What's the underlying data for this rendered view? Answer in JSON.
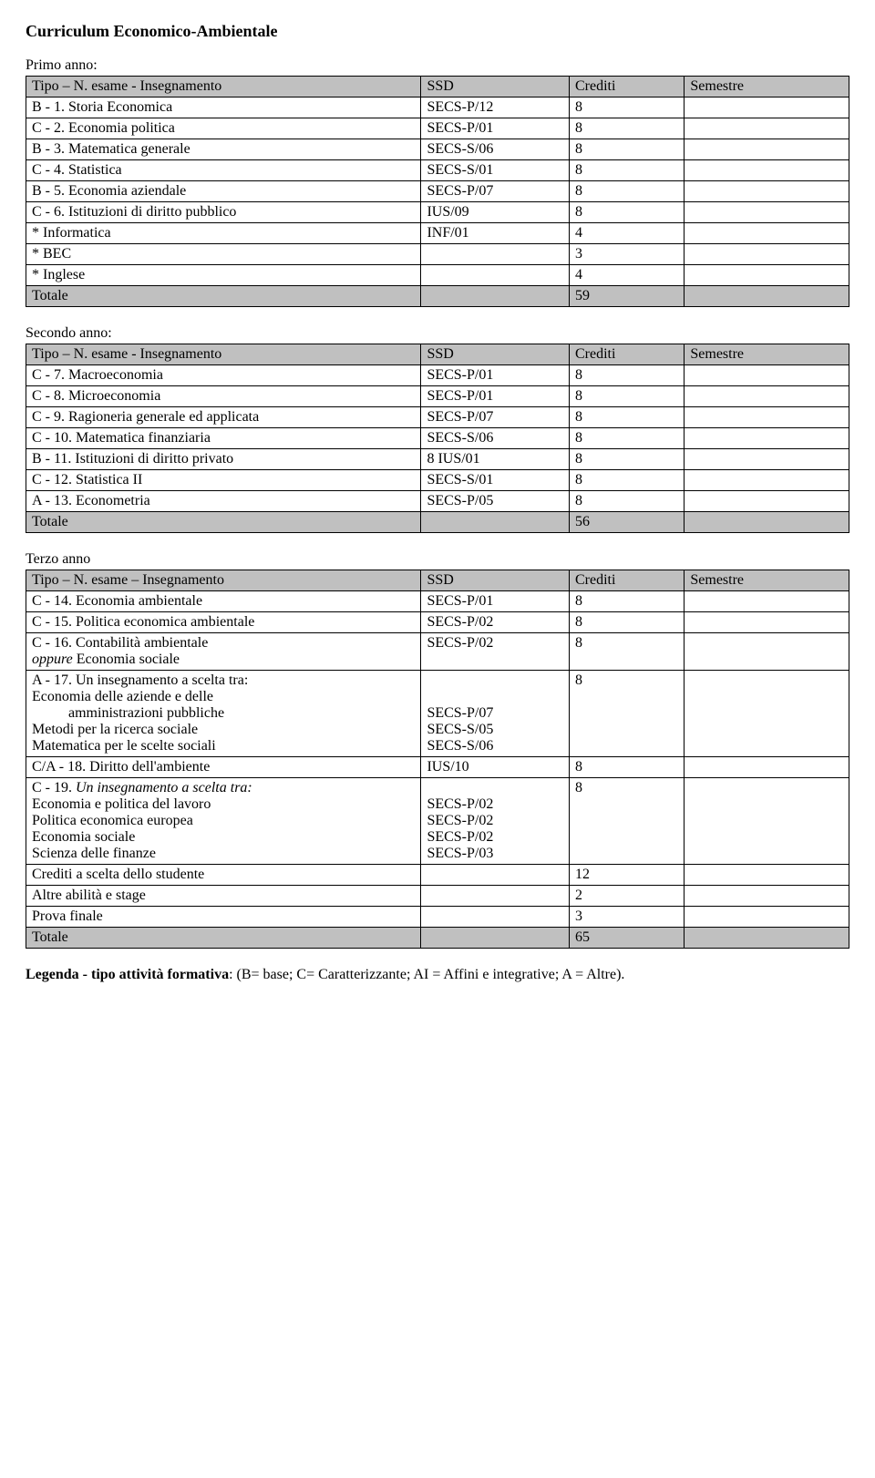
{
  "title": "Curriculum Economico-Ambientale",
  "headers": {
    "name1": "Tipo – N. esame - Insegnamento",
    "name2": "Tipo – N. esame – Insegnamento",
    "ssd": "SSD",
    "crediti": "Crediti",
    "semestre": "Semestre",
    "totale": "Totale"
  },
  "primo": {
    "label": "Primo anno:",
    "rows": [
      {
        "n": "B - 1. Storia Economica",
        "s": "SECS-P/12",
        "c": "8"
      },
      {
        "n": "C - 2. Economia politica",
        "s": "SECS-P/01",
        "c": "8"
      },
      {
        "n": "B - 3. Matematica generale",
        "s": "SECS-S/06",
        "c": "8"
      },
      {
        "n": "C - 4. Statistica",
        "s": "SECS-S/01",
        "c": "8"
      },
      {
        "n": "B - 5. Economia aziendale",
        "s": "SECS-P/07",
        "c": "8"
      },
      {
        "n": "C - 6. Istituzioni di diritto pubblico",
        "s": "IUS/09",
        "c": "8"
      },
      {
        "n": "* Informatica",
        "s": "INF/01",
        "c": "4"
      },
      {
        "n": "* BEC",
        "s": "",
        "c": "3"
      },
      {
        "n": "* Inglese",
        "s": "",
        "c": "4"
      }
    ],
    "total": "59"
  },
  "secondo": {
    "label": "Secondo anno:",
    "rows": [
      {
        "n": "C - 7. Macroeconomia",
        "s": "SECS-P/01",
        "c": "8"
      },
      {
        "n": "C - 8. Microeconomia",
        "s": "SECS-P/01",
        "c": "8"
      },
      {
        "n": "C - 9. Ragioneria generale ed applicata",
        "s": "SECS-P/07",
        "c": "8"
      },
      {
        "n": "C - 10. Matematica finanziaria",
        "s": "SECS-S/06",
        "c": "8"
      },
      {
        "n": "B - 11. Istituzioni di diritto privato",
        "s": "8 IUS/01",
        "c": "8"
      },
      {
        "n": "C - 12. Statistica II",
        "s": "SECS-S/01",
        "c": "8"
      },
      {
        "n": "A - 13. Econometria",
        "s": "SECS-P/05",
        "c": "8"
      }
    ],
    "total": "56"
  },
  "terzo": {
    "label": "Terzo anno",
    "r1": {
      "n": "C - 14. Economia ambientale",
      "s": "SECS-P/01",
      "c": "8"
    },
    "r2": {
      "n": "C - 15. Politica economica ambientale",
      "s": "SECS-P/02",
      "c": "8"
    },
    "r3a": "C - 16. Contabilità ambientale",
    "r3b": " Economia sociale",
    "r3opp": "oppure",
    "r3s": "SECS-P/02",
    "r3c": "8",
    "r4a": "A - 17. Un insegnamento a scelta tra:",
    "r4b": "Economia delle aziende e delle",
    "r4b2": "amministrazioni pubbliche",
    "r4c": "Metodi per la ricerca sociale",
    "r4d": "Matematica per le scelte sociali",
    "r4s1": "SECS-P/07",
    "r4s2": "SECS-S/05",
    "r4s3": "SECS-S/06",
    "r4cred": "8",
    "r5": {
      "n": " C/A - 18. Diritto dell'ambiente",
      "s": "IUS/10",
      "c": "8"
    },
    "r6a": "C - 19. ",
    "r6aItalic": "Un insegnamento a scelta tra:",
    "r6b": "Economia e politica del lavoro",
    "r6c": "Politica economica europea",
    "r6d": "Economia sociale",
    "r6e": "Scienza delle finanze",
    "r6s1": "SECS-P/02",
    "r6s2": "SECS-P/02",
    "r6s3": "SECS-P/02",
    "r6s4": "SECS-P/03",
    "r6cred": "8",
    "r7": {
      "n": "Crediti a scelta dello studente",
      "s": "",
      "c": "12"
    },
    "r8": {
      "n": "Altre abilità e stage",
      "s": "",
      "c": "2"
    },
    "r9": {
      "n": "Prova finale",
      "s": "",
      "c": "3"
    },
    "total": "65"
  },
  "legend": {
    "bold": "Legenda - tipo attività formativa",
    "rest": ": (B= base; C= Caratterizzante; AI = Affini e integrative; A = Altre)."
  }
}
